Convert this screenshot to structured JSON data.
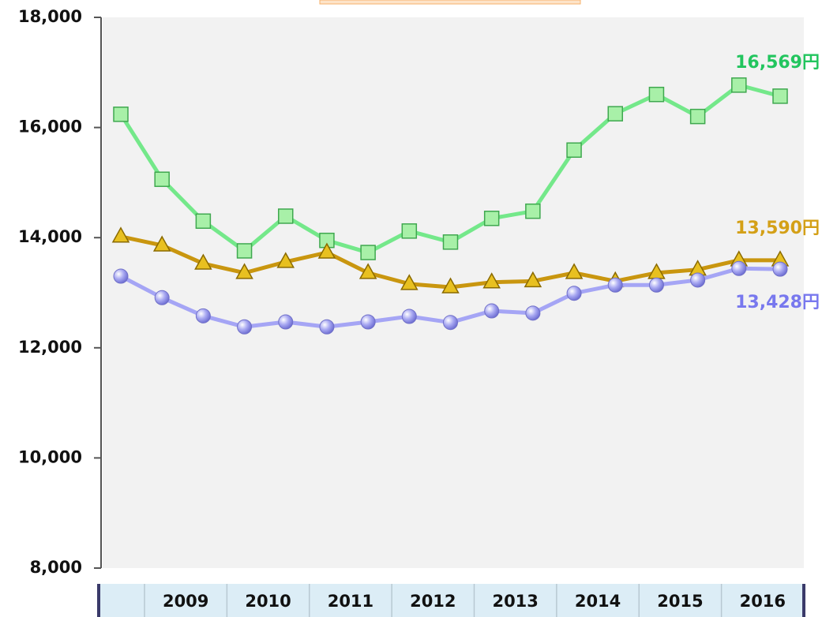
{
  "chart_data": {
    "type": "line",
    "ylim": [
      8000,
      18000
    ],
    "yticks": [
      {
        "value": 8000,
        "label": "8,000"
      },
      {
        "value": 10000,
        "label": "10,000"
      },
      {
        "value": 12000,
        "label": "12,000"
      },
      {
        "value": 14000,
        "label": "14,000"
      },
      {
        "value": 16000,
        "label": "16,000"
      },
      {
        "value": 18000,
        "label": "18,000"
      }
    ],
    "year_row": [
      "2009",
      "2010",
      "2011",
      "2012",
      "2013",
      "2014",
      "2015",
      "2016"
    ],
    "series": [
      {
        "color": "#74e88a",
        "label_color": "#22c55e",
        "marker": "square",
        "values": [
          16240,
          15060,
          14300,
          13760,
          14390,
          13950,
          13730,
          14120,
          13920,
          14350,
          14480,
          15590,
          16250,
          16600,
          16200,
          16770,
          16569
        ],
        "value_labels": [
          null,
          null,
          null,
          null,
          null,
          null,
          null,
          null,
          null,
          null,
          null,
          null,
          null,
          null,
          null,
          null,
          "16,569円"
        ]
      },
      {
        "color": "#c9960f",
        "label_color": "#d4a017",
        "marker": "triangle",
        "values": [
          14020,
          13860,
          13530,
          13360,
          13560,
          13730,
          13360,
          13160,
          13100,
          13190,
          13210,
          13360,
          13210,
          13360,
          13420,
          13590,
          13590
        ],
        "value_labels": [
          null,
          null,
          null,
          null,
          null,
          null,
          null,
          null,
          null,
          null,
          null,
          null,
          null,
          null,
          null,
          null,
          "13,590円"
        ]
      },
      {
        "color": "#a5a5f5",
        "label_color": "#7878ee",
        "marker": "circle",
        "values": [
          13300,
          12910,
          12580,
          12380,
          12470,
          12380,
          12470,
          12570,
          12460,
          12670,
          12630,
          12990,
          13140,
          13140,
          13230,
          13440,
          13428
        ],
        "value_labels": [
          null,
          null,
          null,
          null,
          null,
          null,
          null,
          null,
          null,
          null,
          null,
          null,
          null,
          null,
          null,
          null,
          "13,428円"
        ]
      }
    ]
  }
}
